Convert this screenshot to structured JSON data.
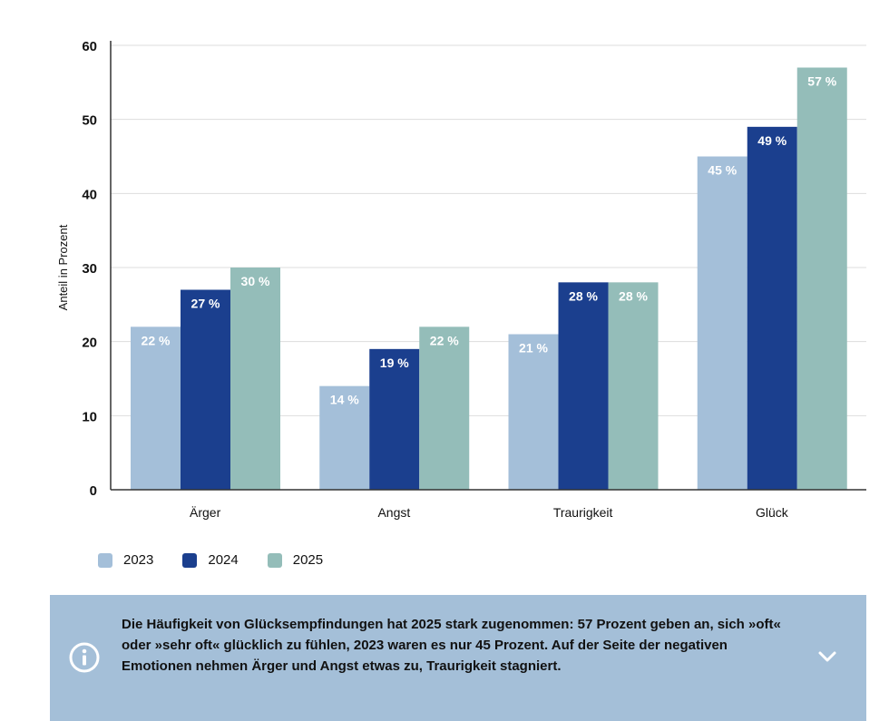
{
  "chart_data": {
    "type": "bar",
    "categories": [
      "Ärger",
      "Angst",
      "Traurigkeit",
      "Glück"
    ],
    "series": [
      {
        "name": "2023",
        "color": "#a4bfd9",
        "values": [
          22,
          14,
          21,
          45
        ],
        "labels": [
          "22 %",
          "14 %",
          "21 %",
          "45 %"
        ]
      },
      {
        "name": "2024",
        "color": "#1b3f8e",
        "values": [
          27,
          19,
          28,
          49
        ],
        "labels": [
          "27 %",
          "19 %",
          "28 %",
          "49 %"
        ]
      },
      {
        "name": "2025",
        "color": "#94bdb9",
        "values": [
          30,
          22,
          28,
          57
        ],
        "labels": [
          "30 %",
          "22 %",
          "28 %",
          "57 %"
        ]
      }
    ],
    "ylabel": "Anteil in Prozent",
    "yticks": [
      "0",
      "10",
      "20",
      "30",
      "40",
      "50",
      "60"
    ],
    "ylim": [
      0,
      60
    ],
    "grid": true,
    "legend_position": "bottom-left"
  },
  "info": {
    "icon": "info-circle-icon",
    "text": "Die Häufigkeit von Glücksempfindungen hat 2025 stark zugenommen: 57 Prozent geben an, sich »oft« oder »sehr oft« glücklich zu fühlen, 2023 waren es nur 45 Prozent. Auf der Seite der negativen Emotionen nehmen Ärger und Angst etwas zu, Traurigkeit stagniert.",
    "expand_icon": "chevron-down-icon",
    "background": "#a4bfd8"
  }
}
